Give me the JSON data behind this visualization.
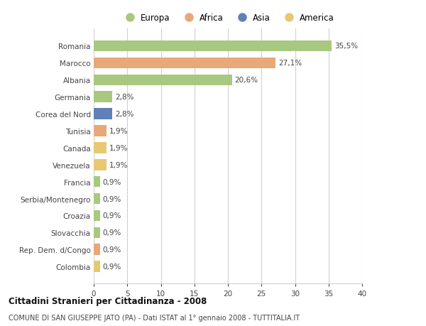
{
  "countries": [
    "Romania",
    "Marocco",
    "Albania",
    "Germania",
    "Corea del Nord",
    "Tunisia",
    "Canada",
    "Venezuela",
    "Francia",
    "Serbia/Montenegro",
    "Croazia",
    "Slovacchia",
    "Rep. Dem. d/Congo",
    "Colombia"
  ],
  "values": [
    35.5,
    27.1,
    20.6,
    2.8,
    2.8,
    1.9,
    1.9,
    1.9,
    0.9,
    0.9,
    0.9,
    0.9,
    0.9,
    0.9
  ],
  "labels": [
    "35,5%",
    "27,1%",
    "20,6%",
    "2,8%",
    "2,8%",
    "1,9%",
    "1,9%",
    "1,9%",
    "0,9%",
    "0,9%",
    "0,9%",
    "0,9%",
    "0,9%",
    "0,9%"
  ],
  "continents": [
    "Europa",
    "Africa",
    "Europa",
    "Europa",
    "Asia",
    "Africa",
    "America",
    "America",
    "Europa",
    "Europa",
    "Europa",
    "Europa",
    "Africa",
    "America"
  ],
  "continent_colors": {
    "Europa": "#a8c880",
    "Africa": "#e8a878",
    "Asia": "#6080b8",
    "America": "#e8c870"
  },
  "legend_order": [
    "Europa",
    "Africa",
    "Asia",
    "America"
  ],
  "title1": "Cittadini Stranieri per Cittadinanza - 2008",
  "title2": "COMUNE DI SAN GIUSEPPE JATO (PA) - Dati ISTAT al 1° gennaio 2008 - TUTTITALIA.IT",
  "xlim": [
    0,
    40
  ],
  "xticks": [
    0,
    5,
    10,
    15,
    20,
    25,
    30,
    35,
    40
  ],
  "background_color": "#ffffff",
  "grid_color": "#d0d0d0"
}
